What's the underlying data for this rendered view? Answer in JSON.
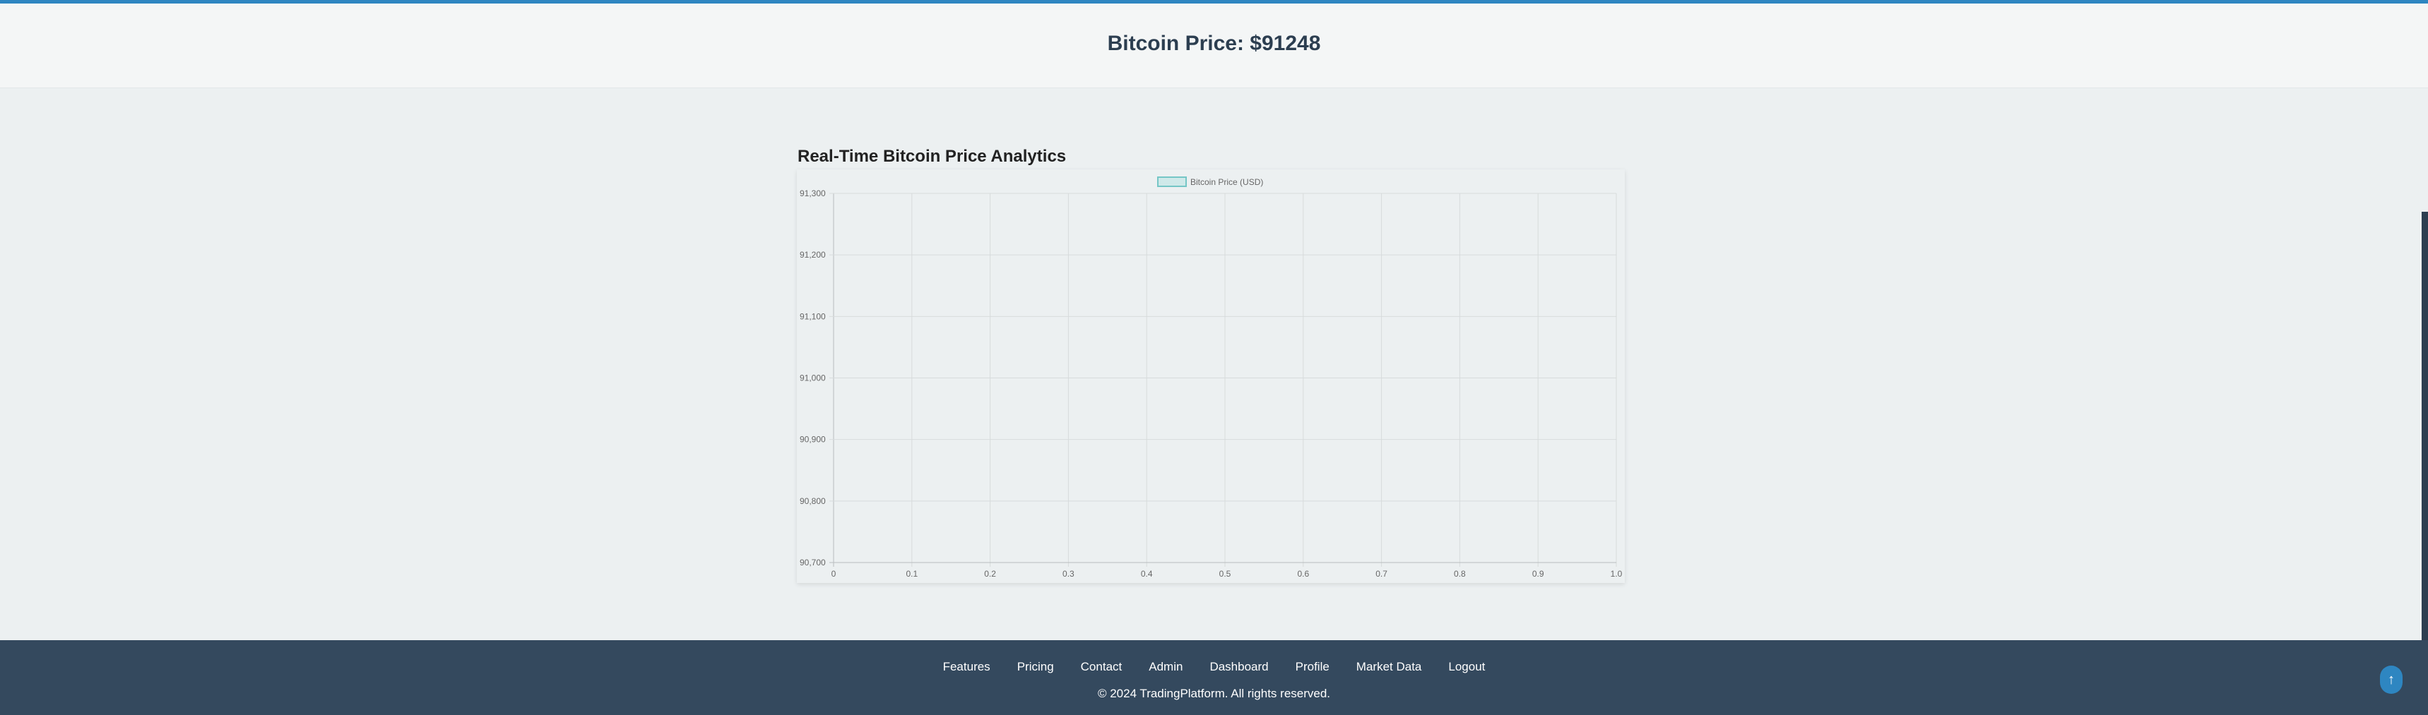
{
  "header": {
    "title": "Bitcoin Price: $91248"
  },
  "main": {
    "section_title": "Real-Time Bitcoin Price Analytics"
  },
  "chart_data": {
    "type": "line",
    "title": "",
    "xlabel": "",
    "ylabel": "",
    "legend_position": "top-center",
    "grid": true,
    "series": [
      {
        "name": "Bitcoin Price (USD)",
        "color": "#75c6c6",
        "values": []
      }
    ],
    "xlim": [
      0,
      1.0
    ],
    "ylim": [
      90700,
      91300
    ],
    "x_ticks": [
      "0",
      "0.1",
      "0.2",
      "0.3",
      "0.4",
      "0.5",
      "0.6",
      "0.7",
      "0.8",
      "0.9",
      "1.0"
    ],
    "y_ticks": [
      "91,300",
      "91,200",
      "91,100",
      "91,000",
      "90,900",
      "90,800",
      "90,700"
    ]
  },
  "footer": {
    "links": [
      "Features",
      "Pricing",
      "Contact",
      "Admin",
      "Dashboard",
      "Profile",
      "Market Data",
      "Logout"
    ],
    "copyright": "© 2024 TradingPlatform. All rights reserved."
  },
  "to_top": {
    "icon": "arrow-up-icon",
    "glyph": "↑"
  },
  "colors": {
    "accent": "#2e86c1",
    "footer_bg": "#34495e",
    "title": "#2c3e50"
  }
}
